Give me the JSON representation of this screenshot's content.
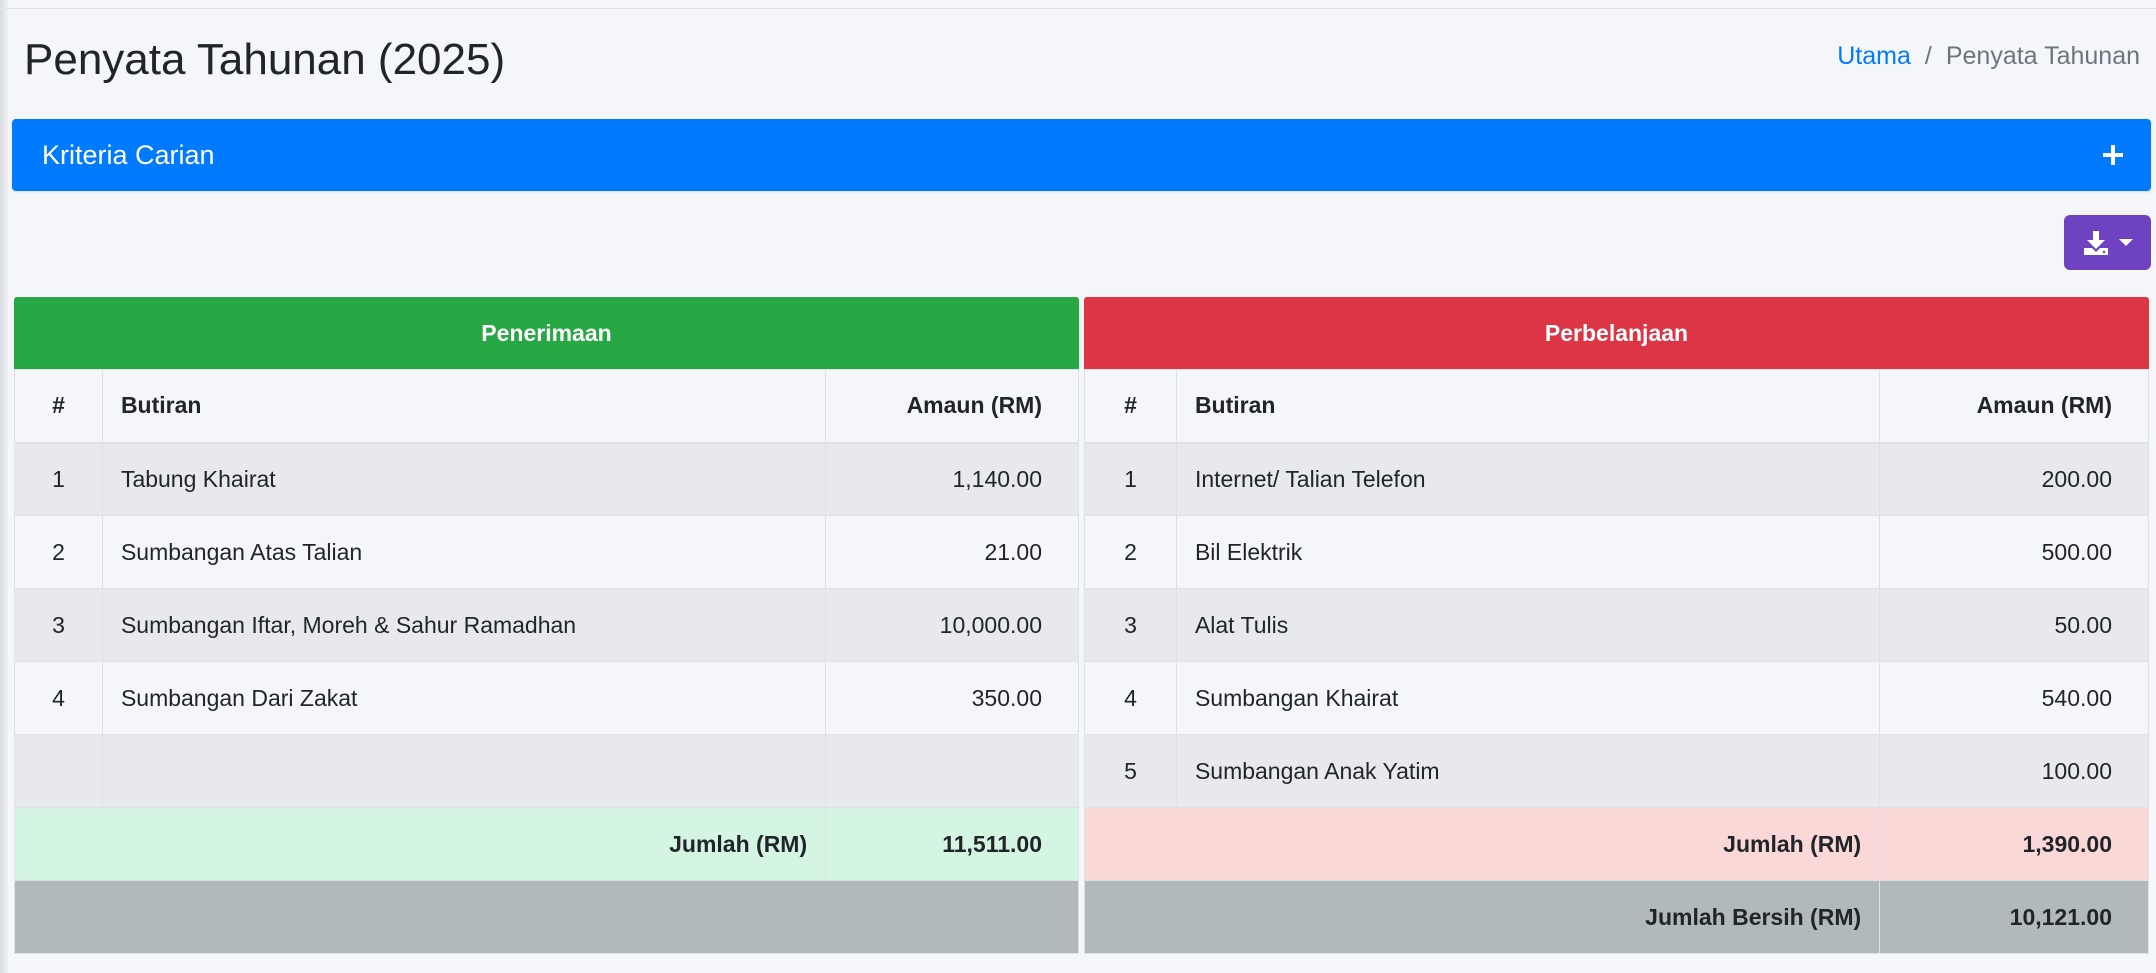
{
  "header": {
    "title": "Penyata Tahunan (2025)",
    "breadcrumb": {
      "home": "Utama",
      "separator": "/",
      "current": "Penyata Tahunan"
    }
  },
  "search": {
    "title": "Kriteria Carian"
  },
  "toolbar": {
    "export_icon": "download-icon"
  },
  "income": {
    "title": "Penerimaan",
    "columns": {
      "no": "#",
      "item": "Butiran",
      "amount": "Amaun (RM)"
    },
    "rows": [
      {
        "no": "1",
        "item": "Tabung Khairat",
        "amount": "1,140.00"
      },
      {
        "no": "2",
        "item": "Sumbangan Atas Talian",
        "amount": "21.00"
      },
      {
        "no": "3",
        "item": "Sumbangan Iftar, Moreh & Sahur Ramadhan",
        "amount": "10,000.00"
      },
      {
        "no": "4",
        "item": "Sumbangan Dari Zakat",
        "amount": "350.00"
      }
    ],
    "total_label": "Jumlah (RM)",
    "total": "11,511.00"
  },
  "expense": {
    "title": "Perbelanjaan",
    "columns": {
      "no": "#",
      "item": "Butiran",
      "amount": "Amaun (RM)"
    },
    "rows": [
      {
        "no": "1",
        "item": "Internet/ Talian Telefon",
        "amount": "200.00"
      },
      {
        "no": "2",
        "item": "Bil Elektrik",
        "amount": "500.00"
      },
      {
        "no": "3",
        "item": "Alat Tulis",
        "amount": "50.00"
      },
      {
        "no": "4",
        "item": "Sumbangan Khairat",
        "amount": "540.00"
      },
      {
        "no": "5",
        "item": "Sumbangan Anak Yatim",
        "amount": "100.00"
      }
    ],
    "total_label": "Jumlah (RM)",
    "total": "1,390.00",
    "net_label": "Jumlah Bersih (RM)",
    "net": "10,121.00"
  },
  "colors": {
    "primary": "#007bff",
    "income_header": "#28a745",
    "expense_header": "#dc3545",
    "export_button": "#6f42c1"
  }
}
